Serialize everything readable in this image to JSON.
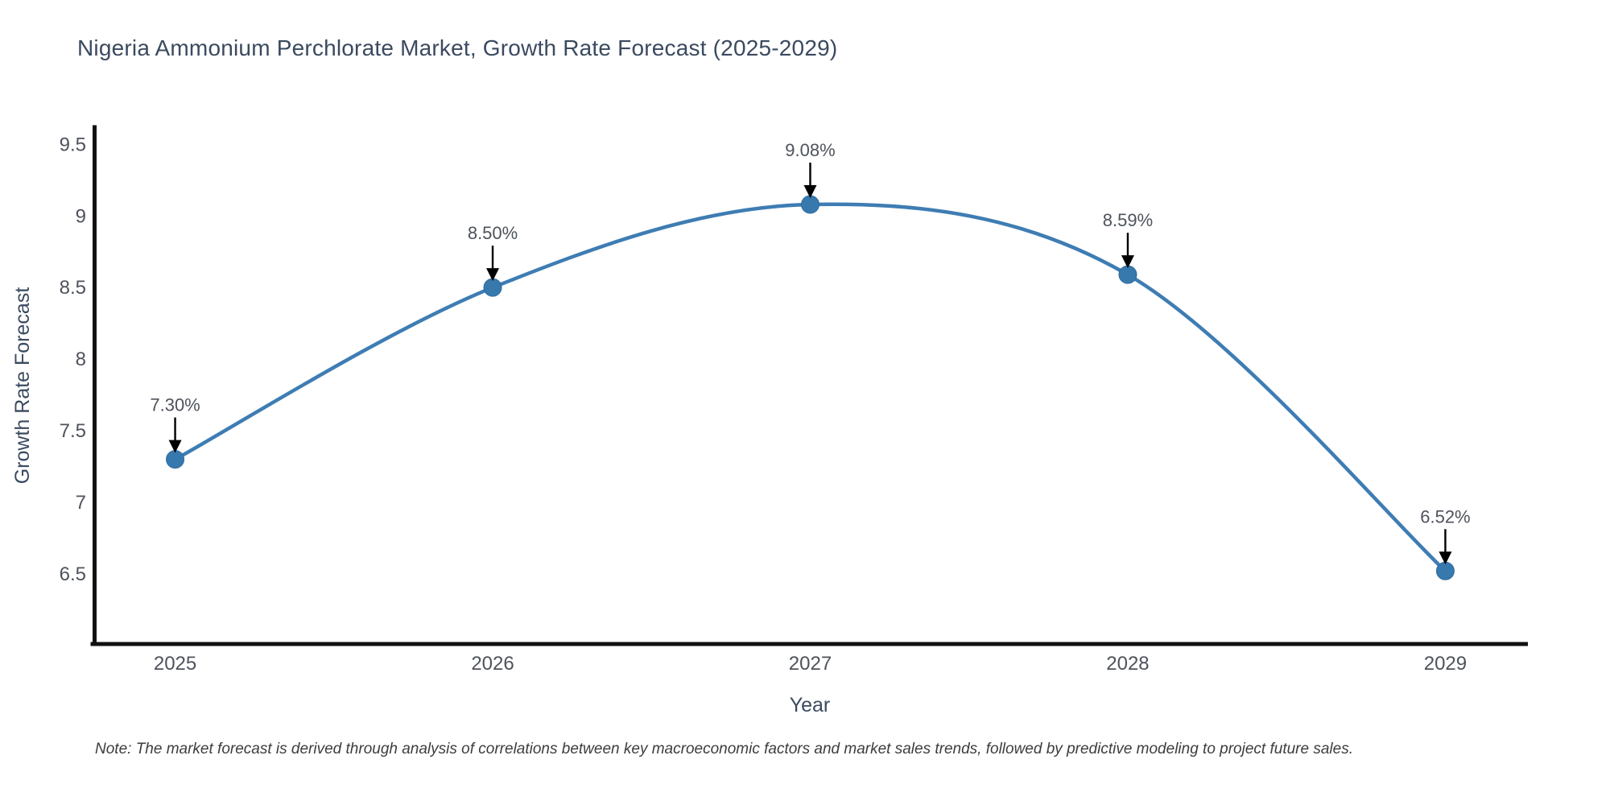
{
  "chart_data": {
    "type": "line",
    "line_shape": "spline",
    "title": "Nigeria Ammonium Perchlorate Market, Growth Rate Forecast (2025-2029)",
    "xlabel": "Year",
    "ylabel": "Growth Rate Forecast",
    "note": "Note: The market forecast is derived through analysis of correlations between key macroeconomic factors and market sales trends, followed by predictive modeling to project future sales.",
    "x": [
      2025,
      2026,
      2027,
      2028,
      2029
    ],
    "values": [
      7.3,
      8.5,
      9.08,
      8.59,
      6.52
    ],
    "point_labels": [
      "7.30%",
      "8.50%",
      "9.08%",
      "8.59%",
      "6.52%"
    ],
    "x_tick_labels": [
      "2025",
      "2026",
      "2027",
      "2028",
      "2029"
    ],
    "y_tick_values": [
      6.5,
      7,
      7.5,
      8,
      8.5,
      9,
      9.5
    ],
    "y_tick_labels": [
      "6.5",
      "7",
      "7.5",
      "8",
      "8.5",
      "9",
      "9.5"
    ],
    "xlim": [
      2024.74,
      2029.26
    ],
    "ylim": [
      6.01,
      9.62
    ],
    "grid": false,
    "legend": "none",
    "colors": {
      "line": "#3E7DB3",
      "marker": "#3879AD",
      "marker_edge": "#2F6B9E",
      "axis": "#111111",
      "annotation_arrow": "#000000",
      "title_text": "#3B4A5F",
      "axis_title_text": "#3B4A5F",
      "tick_text": "#4E535B",
      "note_text": "#3D3D3D",
      "background": "#FFFFFF"
    }
  }
}
